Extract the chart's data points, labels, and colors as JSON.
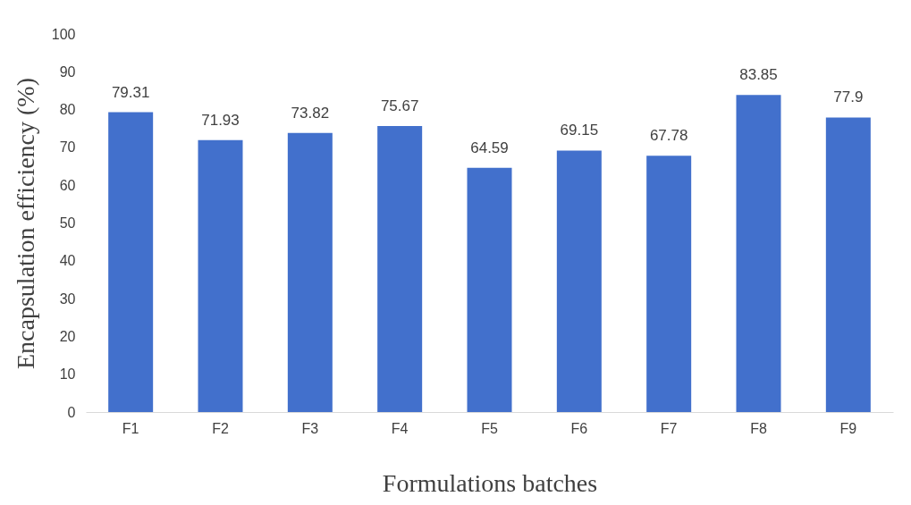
{
  "chart_data": {
    "type": "bar",
    "xlabel": "Formulations batches",
    "ylabel": "Encapsulation efficiency (%)",
    "categories": [
      "F1",
      "F2",
      "F3",
      "F4",
      "F5",
      "F6",
      "F7",
      "F8",
      "F9"
    ],
    "values": [
      79.31,
      71.93,
      73.82,
      75.67,
      64.59,
      69.15,
      67.78,
      83.85,
      77.9
    ],
    "color": "#4270cc",
    "ylim": [
      0,
      100
    ],
    "yticks": [
      0,
      10,
      20,
      30,
      40,
      50,
      60,
      70,
      80,
      90,
      100
    ],
    "grid": false,
    "data_labels": true
  }
}
